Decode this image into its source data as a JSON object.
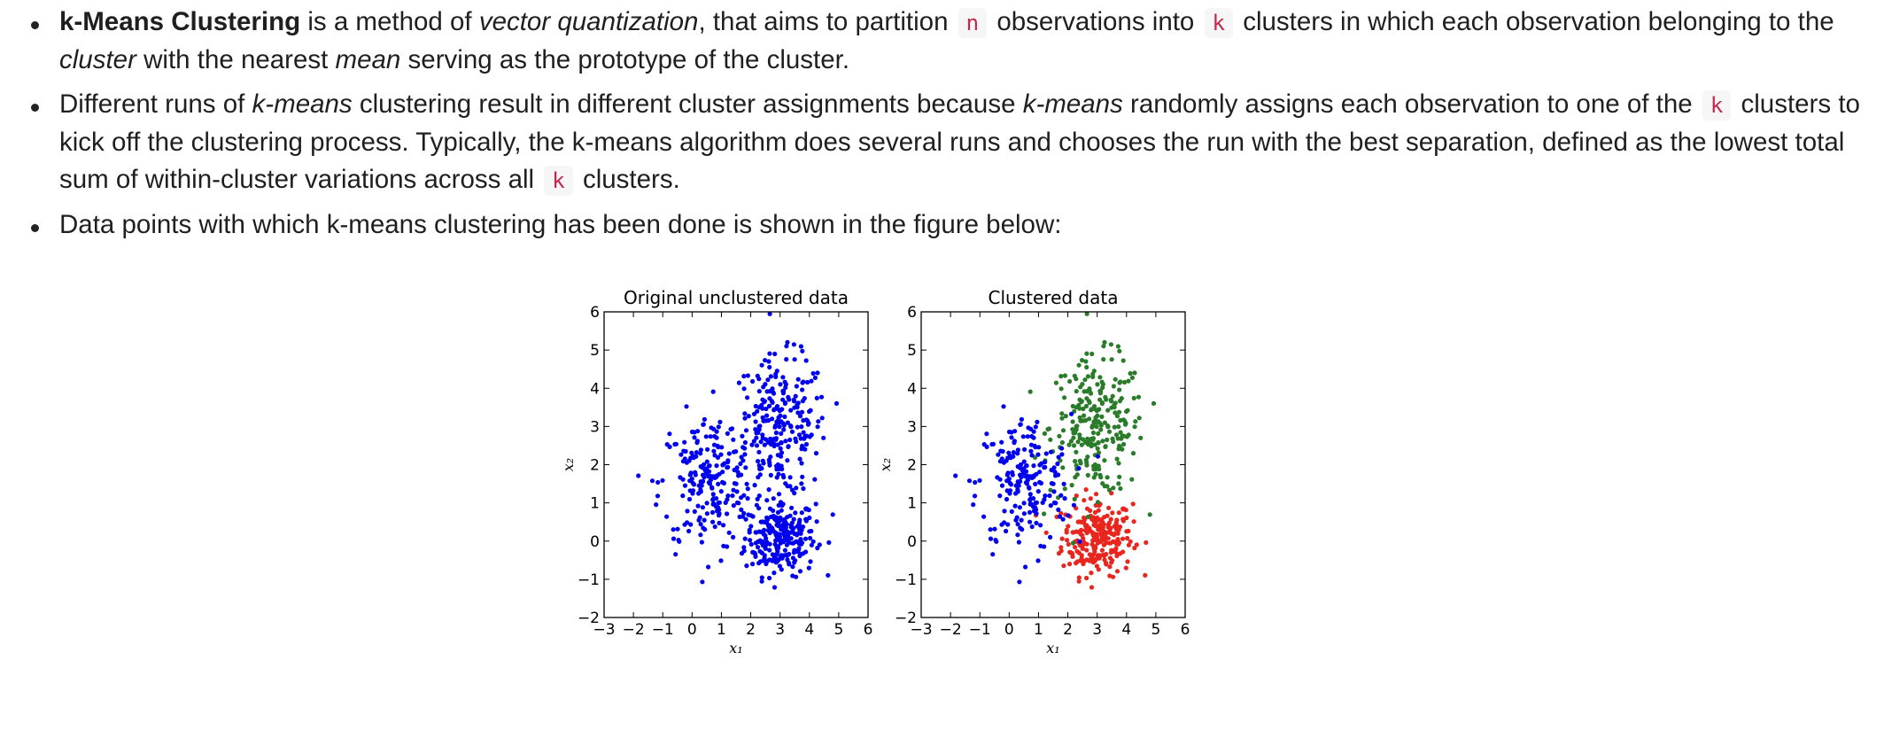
{
  "bullets": [
    {
      "b1": "k-Means Clustering",
      "t1": " is a method of ",
      "i1": "vector quantization",
      "t2": ", that aims to partition ",
      "c1": "n",
      "t3": " observations into ",
      "c2": "k",
      "t4": " clusters in which each observation belonging to the ",
      "i2": "cluster",
      "t5": " with the nearest ",
      "i3": "mean",
      "t6": " serving as the prototype of the cluster."
    },
    {
      "t1": "Different runs of ",
      "i1": "k-means",
      "t2": " clustering result in different cluster assignments because ",
      "i2": "k-means",
      "t3": " randomly assigns each observation to one of the ",
      "c1": "k",
      "t4": " clusters to kick off the clustering process. Typically, the k-means algorithm does several runs and chooses the run with the best separation, defined as the lowest total sum of within-cluster variations across all ",
      "c2": "k",
      "t5": " clusters."
    },
    {
      "t1": "Data points with which k-means clustering has been done is shown in the figure below:"
    }
  ],
  "chart_data": [
    {
      "type": "scatter",
      "title": "Original unclustered data",
      "xlabel": "x₁",
      "ylabel": "x₂",
      "xlim": [
        -3,
        6
      ],
      "ylim": [
        -2,
        6
      ],
      "xticks": [
        "−3",
        "−2",
        "−1",
        "0",
        "1",
        "2",
        "3",
        "4",
        "5",
        "6"
      ],
      "yticks": [
        "−2",
        "−1",
        "0",
        "1",
        "2",
        "3",
        "4",
        "5",
        "6"
      ],
      "grid": false,
      "series": [
        {
          "color": "#0000ee",
          "cluster_centers": [
            [
              3.0,
              0.1
            ],
            [
              3.0,
              3.0
            ],
            [
              0.5,
              1.5
            ]
          ],
          "cluster_spread": [
            [
              0.6,
              0.5
            ],
            [
              0.8,
              0.9
            ],
            [
              0.8,
              0.9
            ]
          ],
          "points_per_cluster": [
            250,
            250,
            200
          ]
        }
      ]
    },
    {
      "type": "scatter",
      "title": "Clustered data",
      "xlabel": "x₁",
      "ylabel": "x₂",
      "xlim": [
        -3,
        6
      ],
      "ylim": [
        -2,
        6
      ],
      "xticks": [
        "−3",
        "−2",
        "−1",
        "0",
        "1",
        "2",
        "3",
        "4",
        "5",
        "6"
      ],
      "yticks": [
        "−2",
        "−1",
        "0",
        "1",
        "2",
        "3",
        "4",
        "5",
        "6"
      ],
      "grid": false,
      "series": [
        {
          "color": "#e8261e",
          "center": [
            3.0,
            0.1
          ],
          "spread": [
            0.6,
            0.5
          ],
          "count": 250
        },
        {
          "color": "#2a7b2a",
          "center": [
            3.0,
            3.0
          ],
          "spread": [
            0.8,
            0.9
          ],
          "count": 250
        },
        {
          "color": "#0000ee",
          "center": [
            0.5,
            1.5
          ],
          "spread": [
            0.8,
            0.9
          ],
          "count": 200
        }
      ]
    }
  ]
}
